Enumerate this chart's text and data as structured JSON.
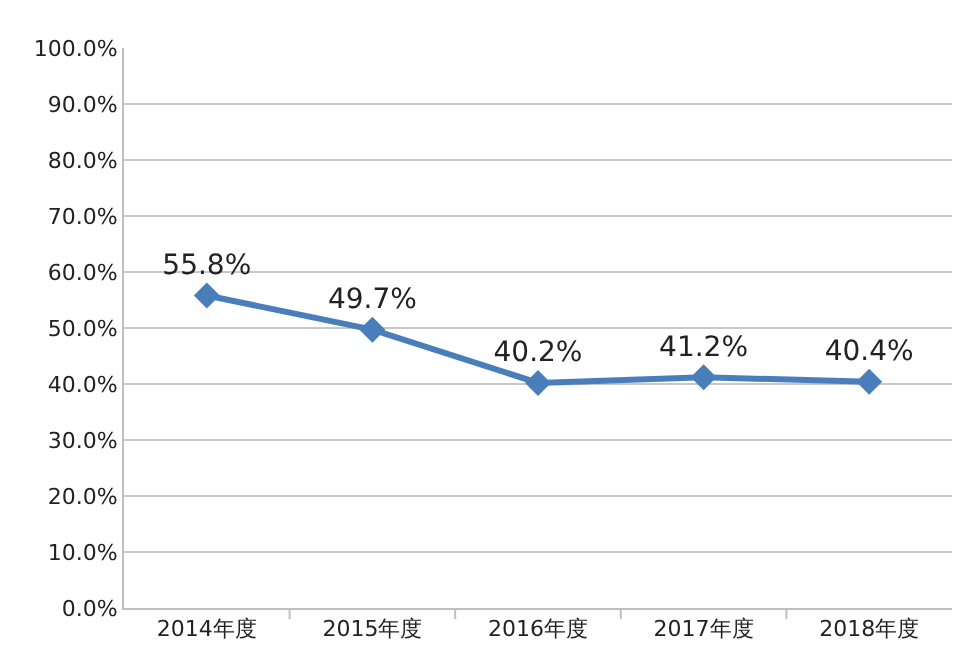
{
  "chart_data": {
    "type": "line",
    "categories": [
      "2014年度",
      "2015年度",
      "2016年度",
      "2017年度",
      "2018年度"
    ],
    "series": [
      {
        "color": "#4a7ebb",
        "values": [
          55.8,
          49.7,
          40.2,
          41.2,
          40.4
        ],
        "value_labels": [
          "55.8%",
          "49.7%",
          "40.2%",
          "41.2%",
          "40.4%"
        ]
      }
    ],
    "ylim": [
      0,
      100
    ],
    "yticks": [
      {
        "value": 0,
        "label": "0.0%"
      },
      {
        "value": 10,
        "label": "10.0%"
      },
      {
        "value": 20,
        "label": "20.0%"
      },
      {
        "value": 30,
        "label": "30.0%"
      },
      {
        "value": 40,
        "label": "40.0%"
      },
      {
        "value": 50,
        "label": "50.0%"
      },
      {
        "value": 60,
        "label": "60.0%"
      },
      {
        "value": 70,
        "label": "70.0%"
      },
      {
        "value": 80,
        "label": "80.0%"
      },
      {
        "value": 90,
        "label": "90.0%"
      },
      {
        "value": 100,
        "label": "100.0%"
      }
    ],
    "grid": "y",
    "marker": "diamond",
    "line_style": "solid"
  }
}
